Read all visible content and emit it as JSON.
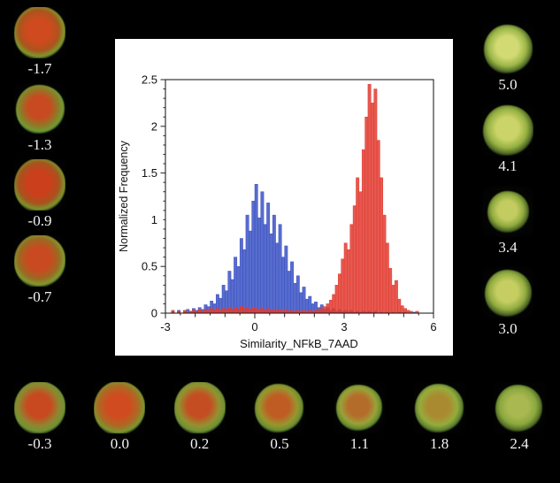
{
  "figure": {
    "background": "#000000",
    "panel_background": "#ffffff"
  },
  "chart_data": {
    "type": "bar",
    "subtype": "histogram",
    "title": "",
    "xlabel": "Similarity_NFkB_7AAD",
    "ylabel": "Normalized Frequency",
    "xlim": [
      -3,
      6
    ],
    "ylim": [
      0,
      2.5
    ],
    "x_ticks": [
      -3,
      0,
      3,
      6
    ],
    "x_tick_labels": [
      "-3",
      "0",
      "3",
      "6"
    ],
    "y_ticks": [
      0,
      0.5,
      1,
      1.5,
      2,
      2.5
    ],
    "y_tick_labels": [
      "0",
      "0.5",
      "1",
      "1.5",
      "2",
      "2.5"
    ],
    "grid": false,
    "legend": "none",
    "bin_start": -3,
    "bin_width": 0.1,
    "series": [
      {
        "name": "blue",
        "color": "#3b52c4",
        "values": [
          0,
          0,
          0.02,
          0,
          0.03,
          0,
          0.02,
          0.04,
          0.02,
          0.05,
          0.03,
          0.06,
          0.04,
          0.09,
          0.07,
          0.13,
          0.1,
          0.2,
          0.16,
          0.3,
          0.24,
          0.45,
          0.36,
          0.6,
          0.5,
          0.8,
          0.68,
          1.05,
          0.88,
          1.2,
          1.38,
          1.02,
          1.3,
          0.95,
          1.18,
          0.85,
          1.05,
          0.75,
          0.95,
          0.6,
          0.72,
          0.45,
          0.55,
          0.32,
          0.4,
          0.22,
          0.28,
          0.15,
          0.18,
          0.1,
          0.12,
          0.06,
          0.09,
          0.04,
          0.06,
          0.03,
          0.05,
          0.02,
          0.04,
          0.02,
          0.03,
          0.02,
          0.03,
          0.01,
          0.02,
          0.01,
          0.02,
          0.01,
          0.02,
          0.01,
          0.02,
          0,
          0.01,
          0,
          0.01,
          0,
          0.01,
          0,
          0.01,
          0,
          0.01,
          0,
          0,
          0.01,
          0,
          0,
          0,
          0,
          0,
          0
        ]
      },
      {
        "name": "red",
        "color": "#e23b30",
        "values": [
          0,
          0,
          0.03,
          0,
          0.02,
          0,
          0.03,
          0,
          0.02,
          0.03,
          0.02,
          0.04,
          0.02,
          0.04,
          0.03,
          0.05,
          0.03,
          0.05,
          0.03,
          0.05,
          0.04,
          0.06,
          0.04,
          0.06,
          0.04,
          0.07,
          0.05,
          0.06,
          0.04,
          0.06,
          0.05,
          0.04,
          0.05,
          0.03,
          0.05,
          0.03,
          0.04,
          0.03,
          0.04,
          0.02,
          0.04,
          0.02,
          0.03,
          0.02,
          0.03,
          0.02,
          0.03,
          0.02,
          0.03,
          0.02,
          0.03,
          0.04,
          0.05,
          0.07,
          0.1,
          0.14,
          0.2,
          0.3,
          0.42,
          0.58,
          0.75,
          0.68,
          0.95,
          1.15,
          1.45,
          1.3,
          1.75,
          2.1,
          2.45,
          2.25,
          2.4,
          1.85,
          1.45,
          1.05,
          0.75,
          0.48,
          0.3,
          0.35,
          0.15,
          0.08,
          0.05,
          0.03,
          0.02,
          0,
          0.02,
          0,
          0,
          0,
          0,
          0
        ]
      }
    ]
  },
  "cells": {
    "left": [
      {
        "label": "-1.7",
        "core": "#cf4a1e",
        "mid": "#a9551d",
        "rim": "#7d9a2e",
        "size": 0.78
      },
      {
        "label": "-1.3",
        "core": "#c84a20",
        "mid": "#8f7a26",
        "rim": "#6f9c36",
        "size": 0.72
      },
      {
        "label": "-0.9",
        "core": "#cc3f1c",
        "mid": "#a5541e",
        "rim": "#7b962e",
        "size": 0.8
      },
      {
        "label": "-0.7",
        "core": "#c94a20",
        "mid": "#9a6a22",
        "rim": "#7f9c33",
        "size": 0.78
      }
    ],
    "right": [
      {
        "label": "5.0",
        "core": "#d2da74",
        "mid": "#9cb648",
        "rim": "#55702a",
        "size": 0.72
      },
      {
        "label": "4.1",
        "core": "#cbd468",
        "mid": "#95b042",
        "rim": "#526b26",
        "size": 0.75
      },
      {
        "label": "3.4",
        "core": "#c3cc60",
        "mid": "#8faa3e",
        "rim": "#4f6824",
        "size": 0.62
      },
      {
        "label": "3.0",
        "core": "#c6ce62",
        "mid": "#92ac40",
        "rim": "#516a25",
        "size": 0.7
      }
    ],
    "bottom": [
      {
        "label": "-0.3",
        "core": "#c8491f",
        "mid": "#8f8630",
        "rim": "#6e9434",
        "size": 0.78
      },
      {
        "label": "0.0",
        "core": "#d04c20",
        "mid": "#a96c24",
        "rim": "#789932",
        "size": 0.8
      },
      {
        "label": "0.2",
        "core": "#c44e22",
        "mid": "#939230",
        "rim": "#6c9234",
        "size": 0.78
      },
      {
        "label": "0.5",
        "core": "#bf5c24",
        "mid": "#99962e",
        "rim": "#688e30",
        "size": 0.72
      },
      {
        "label": "1.1",
        "core": "#b46c2a",
        "mid": "#9aa238",
        "rim": "#628a2e",
        "size": 0.68
      },
      {
        "label": "1.8",
        "core": "#aa8a30",
        "mid": "#96ac3c",
        "rim": "#5c8030",
        "size": 0.72
      },
      {
        "label": "2.4",
        "core": "#a9b850",
        "mid": "#8aa83e",
        "rim": "#547026",
        "size": 0.7
      }
    ]
  }
}
